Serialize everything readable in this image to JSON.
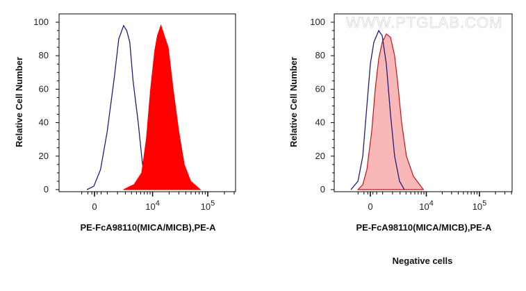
{
  "chart_data": [
    {
      "type": "area",
      "xscale": "biexponential",
      "xlabel": "PE-FcA98110(MICA/MICB),PE-A",
      "ylabel": "Relative Cell Number",
      "caption": "",
      "watermark": "",
      "xlim": [
        -3400,
        300000
      ],
      "ylim": [
        0,
        100
      ],
      "yticks": [
        "0",
        "20",
        "40",
        "60",
        "80",
        "100"
      ],
      "xticks": [
        {
          "value": 0,
          "base": "0",
          "exp": ""
        },
        {
          "value": 10000,
          "base": "10",
          "exp": "4"
        },
        {
          "value": 100000,
          "base": "10",
          "exp": "5"
        }
      ],
      "grid": false,
      "series": [
        {
          "style": "line",
          "color": "#1c1c80",
          "points": [
            [
              -570,
              0
            ],
            [
              -50,
              2
            ],
            [
              460,
              12
            ],
            [
              1000,
              35
            ],
            [
              1680,
              68
            ],
            [
              2140,
              90
            ],
            [
              2750,
              98
            ],
            [
              3200,
              95
            ],
            [
              3700,
              88
            ],
            [
              4300,
              65
            ],
            [
              5400,
              40
            ],
            [
              6500,
              15
            ],
            [
              7900,
              4
            ],
            [
              9600,
              0
            ]
          ]
        },
        {
          "style": "filled",
          "color": "#ff0000",
          "fill": "#ff0000",
          "points": [
            [
              2750,
              0
            ],
            [
              4500,
              3
            ],
            [
              6300,
              10
            ],
            [
              7700,
              30
            ],
            [
              9200,
              60
            ],
            [
              11000,
              83
            ],
            [
              12300,
              92
            ],
            [
              14200,
              98
            ],
            [
              16300,
              92
            ],
            [
              19200,
              85
            ],
            [
              23600,
              60
            ],
            [
              29800,
              35
            ],
            [
              37500,
              15
            ],
            [
              49000,
              5
            ],
            [
              73000,
              0
            ]
          ]
        }
      ]
    },
    {
      "type": "area",
      "xscale": "biexponential",
      "xlabel": "PE-FcA98110(MICA/MICB),PE-A",
      "ylabel": "Relative Cell Number",
      "caption": "Negative cells",
      "watermark": "WWW.PTGLAB.COM",
      "xlim": [
        -3400,
        300000
      ],
      "ylim": [
        0,
        100
      ],
      "yticks": [
        "0",
        "20",
        "40",
        "60",
        "80",
        "100"
      ],
      "xticks": [
        {
          "value": 0,
          "base": "0",
          "exp": ""
        },
        {
          "value": 10000,
          "base": "10",
          "exp": "4"
        },
        {
          "value": 100000,
          "base": "10",
          "exp": "5"
        }
      ],
      "grid": false,
      "series": [
        {
          "style": "filled",
          "color": "#cc1010",
          "fill": "#f8b8b8",
          "points": [
            [
              -1010,
              0
            ],
            [
              -600,
              3
            ],
            [
              -270,
              12
            ],
            [
              110,
              35
            ],
            [
              380,
              60
            ],
            [
              660,
              78
            ],
            [
              960,
              88
            ],
            [
              1340,
              93
            ],
            [
              1770,
              91
            ],
            [
              2250,
              80
            ],
            [
              2630,
              65
            ],
            [
              3240,
              40
            ],
            [
              4080,
              20
            ],
            [
              5630,
              8
            ],
            [
              8800,
              0
            ]
          ]
        },
        {
          "style": "line",
          "color": "#1c1c80",
          "points": [
            [
              -1690,
              0
            ],
            [
              -1010,
              5
            ],
            [
              -600,
              20
            ],
            [
              -270,
              50
            ],
            [
              0,
              75
            ],
            [
              270,
              88
            ],
            [
              660,
              95
            ],
            [
              960,
              92
            ],
            [
              1340,
              75
            ],
            [
              1770,
              45
            ],
            [
              2250,
              20
            ],
            [
              2920,
              5
            ],
            [
              3700,
              0
            ]
          ]
        }
      ]
    }
  ]
}
